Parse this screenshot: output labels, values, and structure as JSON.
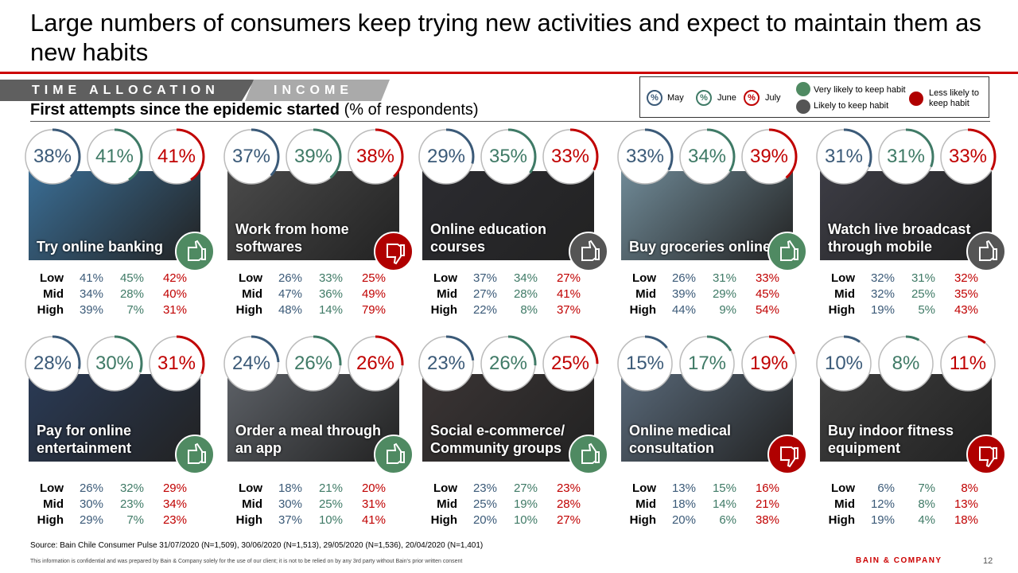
{
  "title": "Large numbers of consumers keep trying new activities and expect to maintain them as new habits",
  "tabs": {
    "time_allocation": "TIME ALLOCATION",
    "income": "INCOME"
  },
  "subtitle": {
    "bold": "First attempts since the epidemic started",
    "normal": " (% of respondents)"
  },
  "legend": {
    "symbol": "%",
    "may": "May",
    "june": "June",
    "july": "July",
    "very_likely": "Very likely to keep habit",
    "likely": "Likely to keep habit",
    "less_likely": "Less likely to keep habit"
  },
  "colors": {
    "may": "#3b5a78",
    "june": "#3f7a66",
    "july": "#c00000",
    "very_likely": "#4f8a62",
    "likely": "#555555",
    "less_likely": "#b00000",
    "accent": "#cc0000"
  },
  "row_labels": {
    "low": "Low",
    "mid": "Mid",
    "high": "High"
  },
  "panels": [
    {
      "label": "Try online banking",
      "may": "38%",
      "june": "41%",
      "july": "41%",
      "may_v": 38,
      "june_v": 41,
      "july_v": 41,
      "habit": "very_likely",
      "bg": "#3a6d94",
      "low": [
        "41%",
        "45%",
        "42%"
      ],
      "mid": [
        "34%",
        "28%",
        "40%"
      ],
      "high": [
        "39%",
        "7%",
        "31%"
      ]
    },
    {
      "label": "Work from home softwares",
      "may": "37%",
      "june": "39%",
      "july": "38%",
      "may_v": 37,
      "june_v": 39,
      "july_v": 38,
      "habit": "less_likely",
      "bg": "#4a4a4a",
      "low": [
        "26%",
        "33%",
        "25%"
      ],
      "mid": [
        "47%",
        "36%",
        "49%"
      ],
      "high": [
        "48%",
        "14%",
        "79%"
      ]
    },
    {
      "label": "Online education courses",
      "may": "29%",
      "june": "35%",
      "july": "33%",
      "may_v": 29,
      "june_v": 35,
      "july_v": 33,
      "habit": "likely",
      "bg": "#2b2b30",
      "low": [
        "37%",
        "34%",
        "27%"
      ],
      "mid": [
        "27%",
        "28%",
        "41%"
      ],
      "high": [
        "22%",
        "8%",
        "37%"
      ]
    },
    {
      "label": "Buy groceries online",
      "may": "33%",
      "june": "34%",
      "july": "39%",
      "may_v": 33,
      "june_v": 34,
      "july_v": 39,
      "habit": "very_likely",
      "bg": "#6f8996",
      "low": [
        "26%",
        "31%",
        "33%"
      ],
      "mid": [
        "39%",
        "29%",
        "45%"
      ],
      "high": [
        "44%",
        "9%",
        "54%"
      ]
    },
    {
      "label": "Watch live broadcast through mobile",
      "may": "31%",
      "june": "31%",
      "july": "33%",
      "may_v": 31,
      "june_v": 31,
      "july_v": 33,
      "habit": "likely",
      "bg": "#3c3c44",
      "low": [
        "32%",
        "31%",
        "32%"
      ],
      "mid": [
        "32%",
        "25%",
        "35%"
      ],
      "high": [
        "19%",
        "5%",
        "43%"
      ]
    },
    {
      "label": "Pay for online entertainment",
      "may": "28%",
      "june": "30%",
      "july": "31%",
      "may_v": 28,
      "june_v": 30,
      "july_v": 31,
      "habit": "very_likely",
      "bg": "#2a3a55",
      "low": [
        "26%",
        "32%",
        "29%"
      ],
      "mid": [
        "30%",
        "23%",
        "34%"
      ],
      "high": [
        "29%",
        "7%",
        "23%"
      ]
    },
    {
      "label": "Order a meal through an app",
      "may": "24%",
      "june": "26%",
      "july": "26%",
      "may_v": 24,
      "june_v": 26,
      "july_v": 26,
      "habit": "very_likely",
      "bg": "#5c6066",
      "low": [
        "18%",
        "21%",
        "20%"
      ],
      "mid": [
        "30%",
        "25%",
        "31%"
      ],
      "high": [
        "37%",
        "10%",
        "41%"
      ]
    },
    {
      "label": "Social e-commerce/ Community groups",
      "may": "23%",
      "june": "26%",
      "july": "25%",
      "may_v": 23,
      "june_v": 26,
      "july_v": 25,
      "habit": "very_likely",
      "bg": "#3a3434",
      "low": [
        "23%",
        "27%",
        "23%"
      ],
      "mid": [
        "25%",
        "19%",
        "28%"
      ],
      "high": [
        "20%",
        "10%",
        "27%"
      ]
    },
    {
      "label": "Online medical consultation",
      "may": "15%",
      "june": "17%",
      "july": "19%",
      "may_v": 15,
      "june_v": 17,
      "july_v": 19,
      "habit": "less_likely",
      "bg": "#586878",
      "low": [
        "13%",
        "15%",
        "16%"
      ],
      "mid": [
        "18%",
        "14%",
        "21%"
      ],
      "high": [
        "20%",
        "6%",
        "38%"
      ]
    },
    {
      "label": "Buy indoor fitness equipment",
      "may": "10%",
      "june": "8%",
      "july": "11%",
      "may_v": 10,
      "june_v": 8,
      "july_v": 11,
      "habit": "less_likely",
      "bg": "#3e3e3e",
      "low": [
        "6%",
        "7%",
        "8%"
      ],
      "mid": [
        "12%",
        "8%",
        "13%"
      ],
      "high": [
        "19%",
        "4%",
        "18%"
      ]
    }
  ],
  "source": "Source: Bain Chile Consumer Pulse 31/07/2020 (N=1,509), 30/06/2020 (N=1,513), 29/05/2020 (N=1,536), 20/04/2020 (N=1,401)",
  "footer": "This information is confidential and was prepared by Bain & Company solely for the use of our client; it is not to be relied on by any 3rd party without Bain's prior written consent",
  "brand": "BAIN & COMPANY",
  "page_number": "12"
}
